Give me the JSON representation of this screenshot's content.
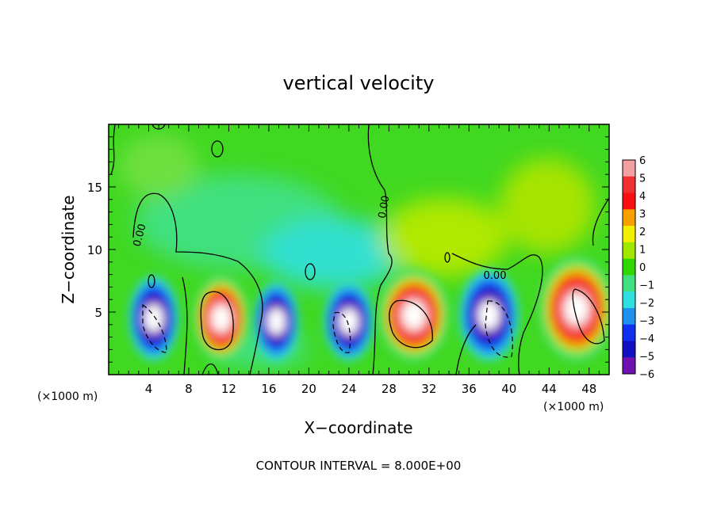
{
  "chart_data": {
    "type": "heatmap",
    "title": "vertical velocity",
    "xlabel": "X−coordinate",
    "ylabel": "Z−coordinate",
    "x_unit_left": "(×1000 m)",
    "x_unit_right": "(×1000 m)",
    "footer": "CONTOUR INTERVAL = 8.000E+00",
    "xlim": [
      0,
      50
    ],
    "ylim": [
      0,
      20
    ],
    "x_ticks": [
      4,
      8,
      12,
      16,
      20,
      24,
      28,
      32,
      36,
      40,
      44,
      48
    ],
    "y_ticks": [
      5,
      10,
      15
    ],
    "contour_labels": [
      "0.00",
      "0.00",
      "0.00"
    ],
    "colorbar": {
      "levels": [
        6,
        5,
        4,
        3,
        2,
        1,
        0,
        -1,
        -2,
        -3,
        -4,
        -5,
        -6
      ],
      "level_labels": [
        "6",
        "5",
        "4",
        "3",
        "2",
        "1",
        "0",
        "−1",
        "−2",
        "−3",
        "−4",
        "−5",
        "−6"
      ],
      "colors": [
        "#f4a0a0",
        "#f03030",
        "#f81010",
        "#f8a000",
        "#f0f000",
        "#a0e800",
        "#30d800",
        "#40e080",
        "#30e0e0",
        "#2090f0",
        "#1030f0",
        "#1010c0",
        "#7010b0"
      ]
    },
    "cells": [
      {
        "x": [
          2.5,
          6.5
        ],
        "z": [
          1.5,
          7.5
        ],
        "w": -7
      },
      {
        "x": [
          9,
          13.5
        ],
        "z": [
          1.5,
          7.5
        ],
        "w": 7
      },
      {
        "x": [
          15,
          18.5
        ],
        "z": [
          1.5,
          7
        ],
        "w": -7
      },
      {
        "x": [
          22,
          26
        ],
        "z": [
          1.5,
          7
        ],
        "w": -7
      },
      {
        "x": [
          27.5,
          33.5
        ],
        "z": [
          1.5,
          8
        ],
        "w": 7
      },
      {
        "x": [
          35.5,
          40.5
        ],
        "z": [
          1.5,
          8
        ],
        "w": -7
      },
      {
        "x": [
          43.5,
          50
        ],
        "z": [
          1.5,
          9
        ],
        "w": 7
      }
    ]
  }
}
